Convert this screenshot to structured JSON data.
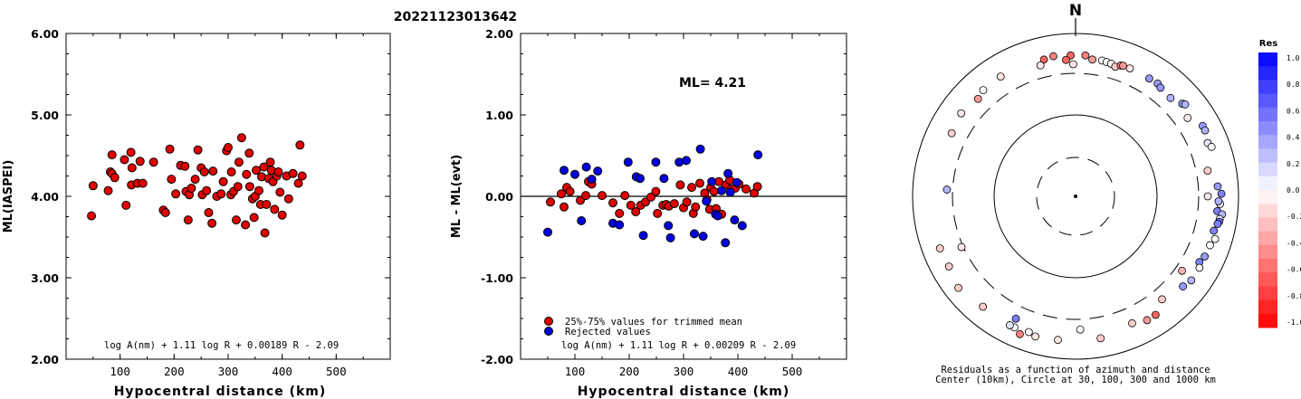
{
  "title": "20221123013642",
  "chart_data": [
    {
      "type": "scatter",
      "ylabel": "ML(IASPEI)",
      "xlabel": "Hypocentral distance (km)",
      "xlim": [
        0,
        600
      ],
      "ylim": [
        2.0,
        6.0
      ],
      "xticks": [
        "100",
        "200",
        "300",
        "400",
        "500"
      ],
      "yticks": [
        "2.00",
        "3.00",
        "4.00",
        "5.00",
        "6.00"
      ],
      "formula": "log A(nm) + 1.11 log R + 0.00189 R - 2.09",
      "series": [
        {
          "color": "#e00000",
          "points": [
            [
              47,
              3.76
            ],
            [
              50,
              4.13
            ],
            [
              78,
              4.07
            ],
            [
              82,
              4.3
            ],
            [
              85,
              4.51
            ],
            [
              85,
              4.28
            ],
            [
              90,
              4.23
            ],
            [
              108,
              4.45
            ],
            [
              111,
              3.89
            ],
            [
              120,
              4.54
            ],
            [
              121,
              4.14
            ],
            [
              122,
              4.35
            ],
            [
              132,
              4.16
            ],
            [
              137,
              4.43
            ],
            [
              142,
              4.16
            ],
            [
              162,
              4.42
            ],
            [
              180,
              3.83
            ],
            [
              184,
              3.8
            ],
            [
              192,
              4.58
            ],
            [
              195,
              4.21
            ],
            [
              203,
              4.03
            ],
            [
              212,
              4.38
            ],
            [
              220,
              4.37
            ],
            [
              222,
              4.06
            ],
            [
              226,
              3.71
            ],
            [
              228,
              4.02
            ],
            [
              232,
              4.1
            ],
            [
              239,
              4.21
            ],
            [
              244,
              4.57
            ],
            [
              250,
              4.35
            ],
            [
              252,
              4.02
            ],
            [
              256,
              4.3
            ],
            [
              260,
              4.07
            ],
            [
              264,
              3.8
            ],
            [
              270,
              3.67
            ],
            [
              272,
              4.31
            ],
            [
              279,
              4.0
            ],
            [
              287,
              4.03
            ],
            [
              291,
              4.18
            ],
            [
              297,
              4.56
            ],
            [
              300,
              4.6
            ],
            [
              305,
              4.02
            ],
            [
              306,
              4.3
            ],
            [
              310,
              4.06
            ],
            [
              315,
              3.71
            ],
            [
              318,
              4.12
            ],
            [
              320,
              4.42
            ],
            [
              325,
              4.72
            ],
            [
              332,
              3.65
            ],
            [
              334,
              4.27
            ],
            [
              339,
              4.53
            ],
            [
              340,
              4.12
            ],
            [
              345,
              3.97
            ],
            [
              348,
              3.74
            ],
            [
              350,
              4.0
            ],
            [
              352,
              4.32
            ],
            [
              357,
              4.07
            ],
            [
              360,
              3.9
            ],
            [
              362,
              4.24
            ],
            [
              366,
              4.36
            ],
            [
              368,
              3.55
            ],
            [
              371,
              3.9
            ],
            [
              375,
              4.22
            ],
            [
              378,
              4.42
            ],
            [
              380,
              4.32
            ],
            [
              383,
              4.18
            ],
            [
              386,
              3.84
            ],
            [
              390,
              4.25
            ],
            [
              393,
              4.3
            ],
            [
              396,
              4.05
            ],
            [
              400,
              3.77
            ],
            [
              408,
              4.25
            ],
            [
              412,
              3.97
            ],
            [
              420,
              4.28
            ],
            [
              430,
              4.16
            ],
            [
              433,
              4.63
            ],
            [
              437,
              4.25
            ]
          ]
        }
      ]
    },
    {
      "type": "scatter",
      "ylabel": "ML - ML(evt)",
      "xlabel": "Hypocentral distance (km)",
      "annotation": "ML= 4.21",
      "xlim": [
        0,
        600
      ],
      "ylim": [
        -2.0,
        2.0
      ],
      "xticks": [
        "100",
        "200",
        "300",
        "400",
        "500"
      ],
      "yticks": [
        "-2.00",
        "-1.00",
        "0.00",
        "1.00",
        "2.00"
      ],
      "reference_line_y": 0.0,
      "formula": "log A(nm) + 1.11 log R + 0.00209 R - 2.09",
      "series": [
        {
          "name": "25%-75% values for trimmed mean",
          "color": "#e00000",
          "points": [
            [
              55,
              -0.07
            ],
            [
              75,
              0.03
            ],
            [
              80,
              -0.13
            ],
            [
              85,
              0.11
            ],
            [
              91,
              0.06
            ],
            [
              110,
              -0.05
            ],
            [
              120,
              0.01
            ],
            [
              125,
              0.18
            ],
            [
              131,
              0.15
            ],
            [
              150,
              0.01
            ],
            [
              170,
              -0.08
            ],
            [
              182,
              -0.21
            ],
            [
              192,
              0.01
            ],
            [
              203,
              -0.11
            ],
            [
              212,
              -0.19
            ],
            [
              221,
              -0.11
            ],
            [
              230,
              -0.07
            ],
            [
              240,
              -0.01
            ],
            [
              249,
              0.06
            ],
            [
              252,
              -0.21
            ],
            [
              262,
              -0.11
            ],
            [
              268,
              -0.1
            ],
            [
              273,
              -0.12
            ],
            [
              283,
              -0.09
            ],
            [
              294,
              0.14
            ],
            [
              300,
              -0.14
            ],
            [
              306,
              -0.07
            ],
            [
              315,
              0.11
            ],
            [
              318,
              -0.21
            ],
            [
              322,
              -0.13
            ],
            [
              330,
              0.16
            ],
            [
              339,
              0.04
            ],
            [
              343,
              -0.04
            ],
            [
              348,
              -0.16
            ],
            [
              350,
              0.11
            ],
            [
              356,
              0.06
            ],
            [
              360,
              -0.15
            ],
            [
              365,
              0.18
            ],
            [
              370,
              -0.22
            ],
            [
              378,
              0.14
            ],
            [
              385,
              0.2
            ],
            [
              388,
              0.09
            ],
            [
              395,
              0.1
            ],
            [
              402,
              0.15
            ],
            [
              415,
              0.09
            ],
            [
              430,
              0.04
            ],
            [
              436,
              0.12
            ]
          ]
        },
        {
          "name": "Rejected values",
          "color": "#0000e0",
          "points": [
            [
              50,
              -0.44
            ],
            [
              80,
              0.32
            ],
            [
              100,
              0.27
            ],
            [
              112,
              -0.3
            ],
            [
              121,
              0.36
            ],
            [
              131,
              0.21
            ],
            [
              142,
              0.31
            ],
            [
              170,
              -0.33
            ],
            [
              182,
              -0.35
            ],
            [
              198,
              0.42
            ],
            [
              213,
              0.24
            ],
            [
              220,
              0.22
            ],
            [
              226,
              -0.48
            ],
            [
              249,
              0.42
            ],
            [
              264,
              0.22
            ],
            [
              272,
              -0.36
            ],
            [
              276,
              -0.51
            ],
            [
              292,
              0.42
            ],
            [
              305,
              0.44
            ],
            [
              320,
              -0.46
            ],
            [
              331,
              0.58
            ],
            [
              336,
              -0.49
            ],
            [
              342,
              -0.06
            ],
            [
              352,
              0.18
            ],
            [
              359,
              -0.22
            ],
            [
              363,
              -0.24
            ],
            [
              370,
              0.07
            ],
            [
              377,
              -0.57
            ],
            [
              382,
              0.28
            ],
            [
              386,
              0.05
            ],
            [
              394,
              -0.29
            ],
            [
              398,
              0.17
            ],
            [
              408,
              -0.36
            ],
            [
              437,
              0.51
            ]
          ]
        }
      ]
    },
    {
      "type": "polar-scatter",
      "north_label": "N",
      "colorbar_title": "Res",
      "colorbar_ticks": [
        "1.0",
        "0.8",
        "0.6",
        "0.4",
        "0.2",
        "0.0",
        "-0.2",
        "-0.4",
        "-0.6",
        "-0.8",
        "-1.0"
      ],
      "colorbar_range": [
        -1.0,
        1.0
      ],
      "caption_line1": "Residuals as a function of azimuth and distance",
      "caption_line2": "Center (10km), Circle at 30, 100, 300 and 1000 km",
      "rings_km": [
        30,
        100,
        300,
        1000
      ],
      "points_az_dist_res": [
        [
          7,
          560,
          -0.4
        ],
        [
          11,
          570,
          0.0
        ],
        [
          4,
          620,
          -0.5
        ],
        [
          -2,
          615,
          -0.6
        ],
        [
          -9,
          630,
          -0.5
        ],
        [
          -13,
          605,
          -0.6
        ],
        [
          -4,
          540,
          -0.6
        ],
        [
          13,
          560,
          0.0
        ],
        [
          15,
          550,
          0.0
        ],
        [
          17,
          520,
          -0.2
        ],
        [
          19,
          570,
          -0.5
        ],
        [
          20,
          580,
          -0.4
        ],
        [
          23,
          580,
          -0.1
        ],
        [
          32,
          580,
          0.4
        ],
        [
          36,
          590,
          0.4
        ],
        [
          38,
          560,
          0.4
        ],
        [
          44,
          540,
          0.3
        ],
        [
          49,
          620,
          0.4
        ],
        [
          50,
          650,
          0.3
        ],
        [
          55,
          540,
          -0.1
        ],
        [
          61,
          690,
          0.4
        ],
        [
          63,
          690,
          0.3
        ],
        [
          68,
          640,
          0.1
        ],
        [
          70,
          680,
          0.0
        ],
        [
          79,
          500,
          -0.2
        ],
        [
          90,
          460,
          -0.1
        ],
        [
          96,
          640,
          0.5
        ],
        [
          97,
          730,
          0.3
        ],
        [
          93,
          680,
          0.0
        ],
        [
          92,
          650,
          0.3
        ],
        [
          89,
          700,
          0.5
        ],
        [
          86,
          640,
          0.4
        ],
        [
          99,
          700,
          0.0
        ],
        [
          100,
          700,
          0.6
        ],
        [
          101,
          680,
          0.5
        ],
        [
          104,
          640,
          0.5
        ],
        [
          107,
          700,
          0.0
        ],
        [
          110,
          650,
          0.0
        ],
        [
          115,
          640,
          0.4
        ],
        [
          118,
          600,
          0.5
        ],
        [
          120,
          650,
          0.0
        ],
        [
          126,
          650,
          0.3
        ],
        [
          130,
          600,
          0.4
        ],
        [
          125,
          420,
          -0.3
        ],
        [
          140,
          500,
          -0.2
        ],
        [
          146,
          650,
          -0.6
        ],
        [
          150,
          650,
          -0.4
        ],
        [
          156,
          580,
          -0.2
        ],
        [
          170,
          670,
          -0.2
        ],
        [
          178,
          480,
          0.0
        ],
        [
          187,
          680,
          -0.1
        ],
        [
          196,
          700,
          -0.1
        ],
        [
          199,
          660,
          0.0
        ],
        [
          202,
          750,
          -0.5
        ],
        [
          205,
          680,
          0.0
        ],
        [
          207,
          680,
          0.1
        ],
        [
          206,
          530,
          0.5
        ],
        [
          220,
          670,
          -0.2
        ],
        [
          232,
          750,
          -0.2
        ],
        [
          241,
          680,
          -0.2
        ],
        [
          246,
          330,
          -0.1
        ],
        [
          249,
          690,
          -0.2
        ],
        [
          273,
          400,
          0.3
        ],
        [
          297,
          580,
          -0.2
        ],
        [
          306,
          620,
          -0.1
        ],
        [
          315,
          560,
          -0.4
        ],
        [
          319,
          610,
          0.0
        ],
        [
          328,
          620,
          -0.1
        ],
        [
          345,
          520,
          -0.1
        ],
        [
          359,
          460,
          -0.1
        ]
      ]
    }
  ]
}
